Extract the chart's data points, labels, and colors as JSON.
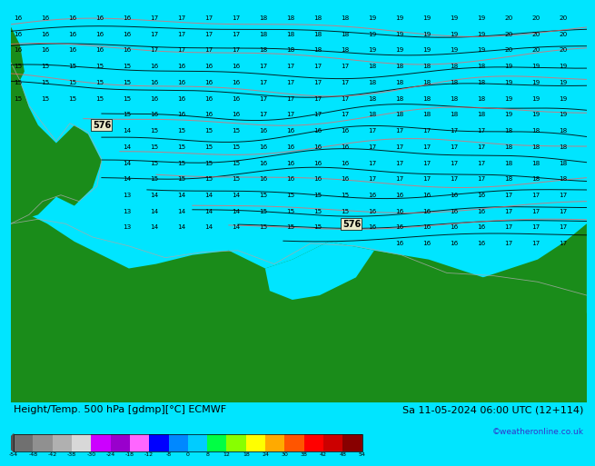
{
  "title_left": "Height/Temp. 500 hPa [gdmp][°C] ECMWF",
  "title_right": "Sa 11-05-2024 06:00 UTC (12+114)",
  "credit": "©weatheronline.co.uk",
  "fig_width": 6.34,
  "fig_height": 4.9,
  "sea_color": "#00e5ff",
  "land_color": "#1a8c1a",
  "land_color2": "#156815",
  "contour_text_color": "#000000",
  "black_line_color": "#000000",
  "red_line_color": "#ff6060",
  "white_line_color": "#cccccc",
  "label_576_bg": "#e8e8c8",
  "title_fontsize": 8,
  "credit_color": "#3333cc",
  "colorbar_colors": [
    "#707070",
    "#909090",
    "#b0b0b0",
    "#d8d8d8",
    "#cc00ff",
    "#9900cc",
    "#ff66ff",
    "#0000ff",
    "#0088ff",
    "#00ccff",
    "#00ff44",
    "#88ff00",
    "#ffff00",
    "#ffaa00",
    "#ff5500",
    "#ff0000",
    "#cc0000",
    "#880000"
  ],
  "colorbar_ticks": [
    -54,
    -48,
    -42,
    -38,
    -30,
    -24,
    -18,
    -12,
    -8,
    0,
    8,
    12,
    18,
    24,
    30,
    38,
    42,
    48,
    54
  ]
}
